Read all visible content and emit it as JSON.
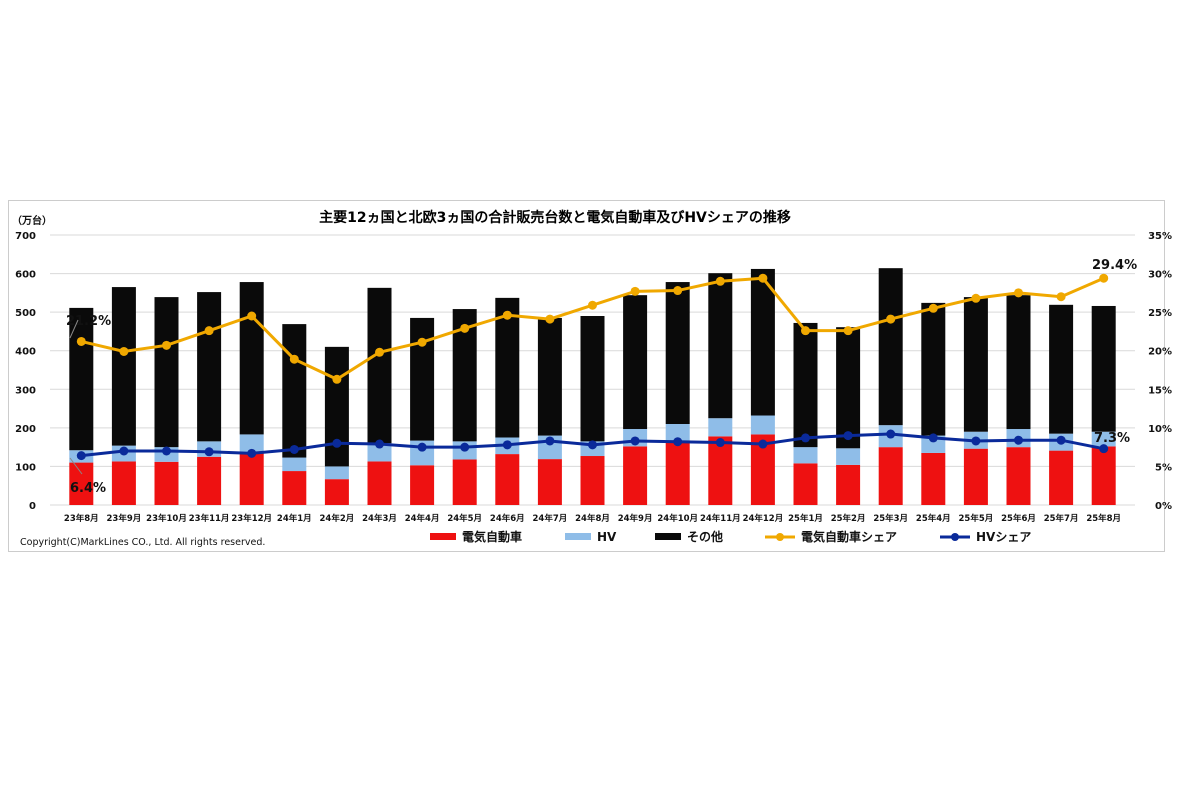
{
  "chart_data": {
    "type": "bar",
    "title": "主要12ヵ国と北欧3ヵ国の合計販売台数と電気自動車及びHVシェアの推移",
    "ylabel": "（万台）",
    "ylim": [
      0,
      700
    ],
    "yticks": [
      "0",
      "100",
      "200",
      "300",
      "400",
      "500",
      "600",
      "700"
    ],
    "y2lim": [
      0,
      35
    ],
    "y2ticks": [
      "0%",
      "5%",
      "10%",
      "15%",
      "20%",
      "25%",
      "30%",
      "35%"
    ],
    "grid": true,
    "legend_position": "bottom",
    "categories": [
      "23年8月",
      "23年9月",
      "23年10月",
      "23年11月",
      "23年12月",
      "24年1月",
      "24年2月",
      "24年3月",
      "24年4月",
      "24年5月",
      "24年6月",
      "24年7月",
      "24年8月",
      "24年9月",
      "24年10月",
      "24年11月",
      "24年12月",
      "25年1月",
      "25年2月",
      "25年3月",
      "25年4月",
      "25年5月",
      "25年6月",
      "25年7月",
      "25年8月"
    ],
    "series": [
      {
        "name": "電気自動車",
        "kind": "bar",
        "color": "#ee1111",
        "values": [
          110,
          113,
          112,
          125,
          135,
          88,
          67,
          113,
          103,
          118,
          132,
          119,
          127,
          152,
          162,
          178,
          183,
          108,
          104,
          150,
          135,
          146,
          150,
          141,
          152
        ]
      },
      {
        "name": "HV",
        "kind": "bar",
        "color": "#8fbde8",
        "values": [
          32,
          41,
          38,
          40,
          48,
          35,
          33,
          47,
          64,
          47,
          43,
          61,
          38,
          45,
          48,
          47,
          49,
          42,
          43,
          57,
          45,
          44,
          47,
          44,
          38
        ]
      },
      {
        "name": "その他",
        "kind": "bar",
        "color": "#0a0a0a",
        "values": [
          369,
          411,
          389,
          387,
          395,
          346,
          310,
          403,
          318,
          343,
          362,
          305,
          325,
          347,
          368,
          376,
          380,
          322,
          314,
          407,
          344,
          349,
          347,
          334,
          326
        ]
      },
      {
        "name": "電気自動車シェア",
        "kind": "line",
        "axis": "right",
        "color": "#f0a800",
        "values": [
          21.2,
          19.9,
          20.7,
          22.6,
          24.5,
          18.9,
          16.3,
          19.8,
          21.1,
          22.9,
          24.6,
          24.1,
          25.9,
          27.7,
          27.8,
          29.0,
          29.4,
          22.6,
          22.6,
          24.1,
          25.5,
          26.8,
          27.5,
          27.0,
          29.4
        ]
      },
      {
        "name": "HVシェア",
        "kind": "line",
        "axis": "right",
        "color": "#0a2a9a",
        "values": [
          6.4,
          7.0,
          7.0,
          6.9,
          6.7,
          7.2,
          8.0,
          7.9,
          7.5,
          7.5,
          7.8,
          8.3,
          7.8,
          8.3,
          8.2,
          8.1,
          7.9,
          8.7,
          9.0,
          9.2,
          8.7,
          8.3,
          8.4,
          8.4,
          7.3
        ]
      }
    ],
    "annotations": {
      "ev_first": "21.2%",
      "ev_last": "29.4%",
      "hv_first": "6.4%",
      "hv_last": "7.3%"
    },
    "copyright": "Copyright(C)MarkLines CO., Ltd. All rights reserved."
  }
}
